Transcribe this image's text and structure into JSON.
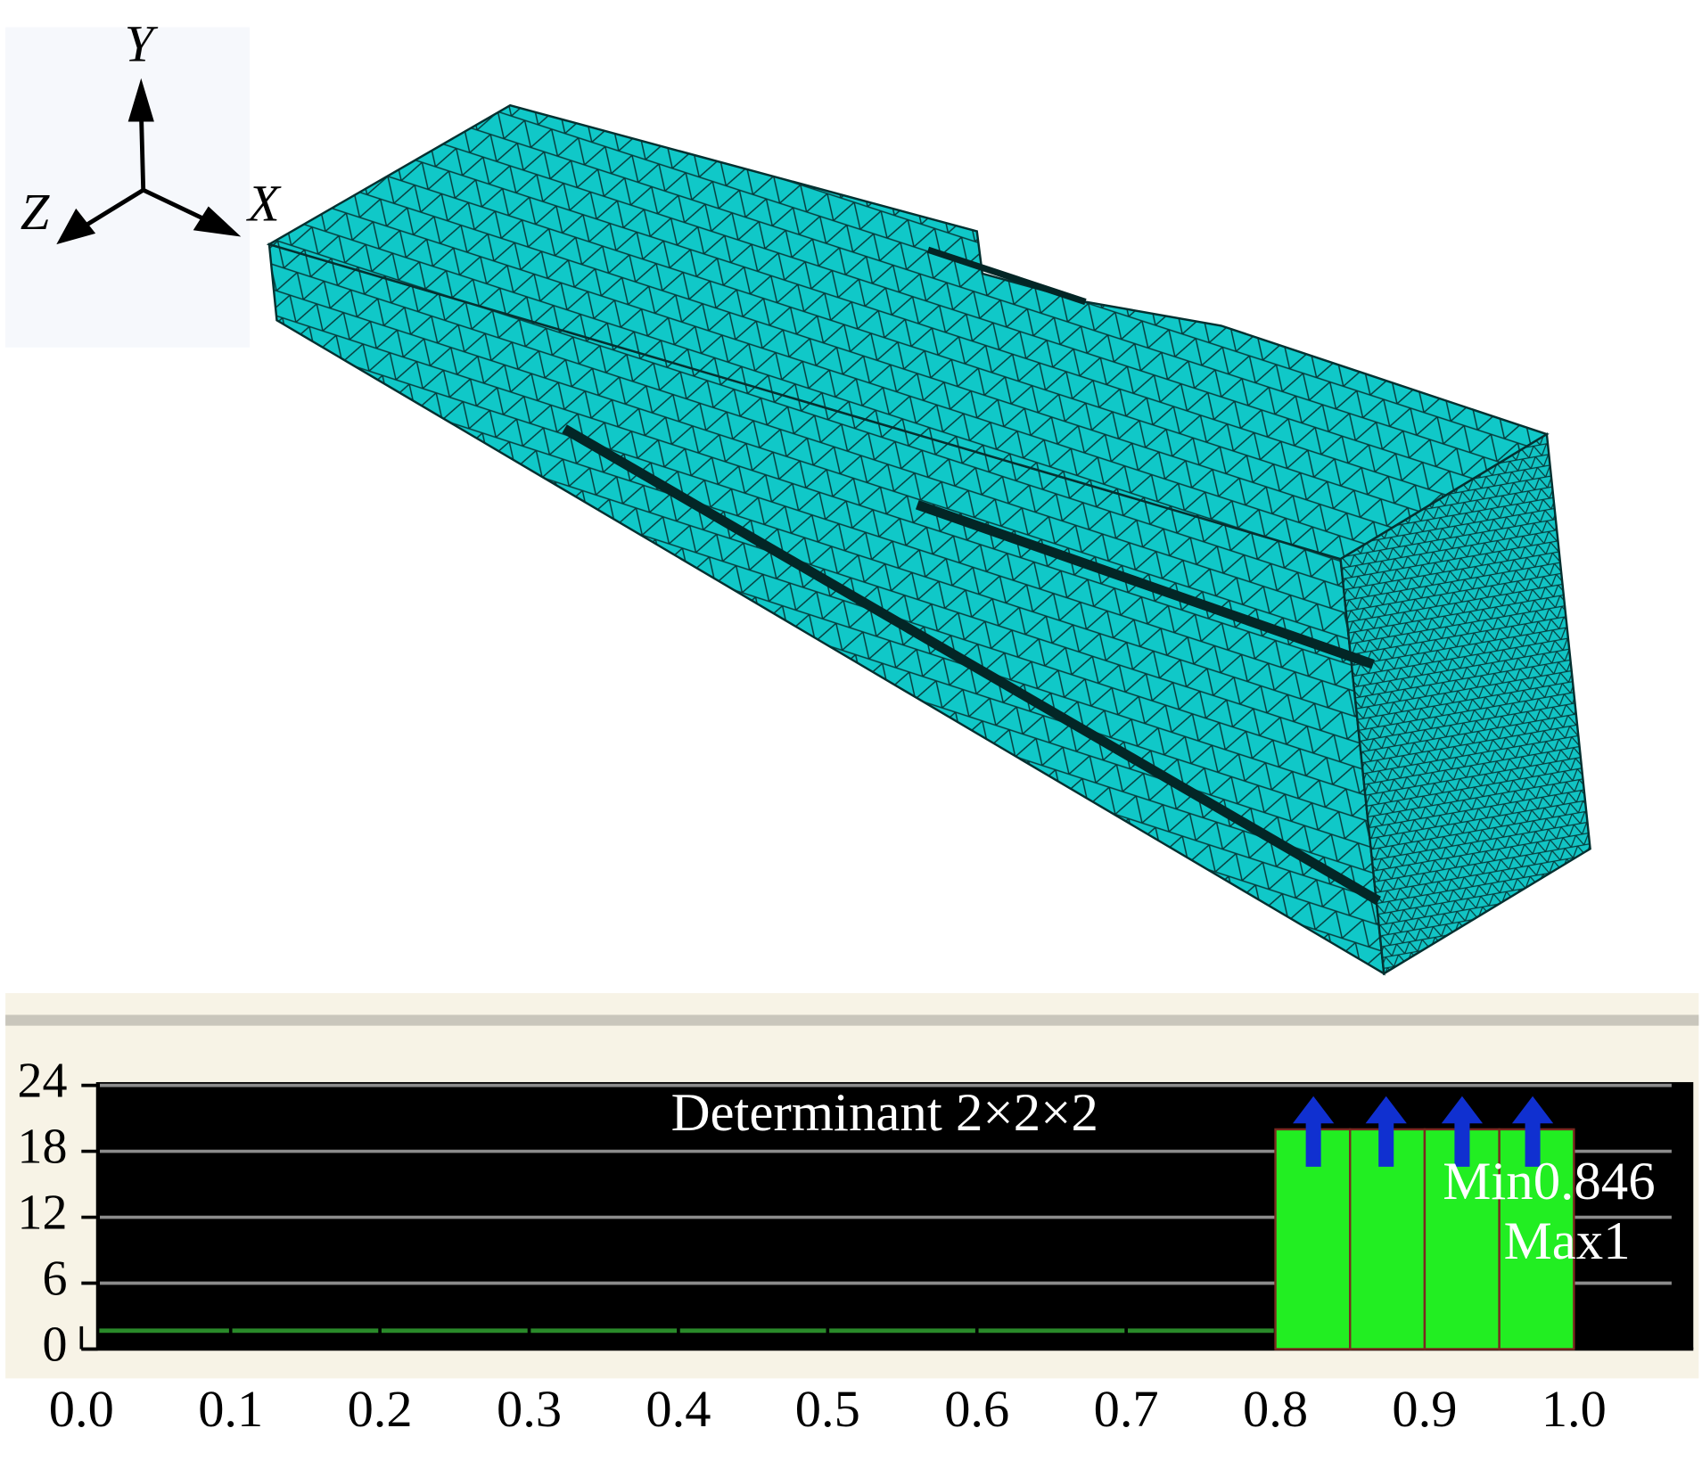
{
  "axis_triad": {
    "y": "Y",
    "z": "Z",
    "x": "X"
  },
  "chart_data": {
    "type": "histogram",
    "title": "Determinant 2×2×2",
    "annotations": [
      "Min0.846",
      "Max1"
    ],
    "bins": [
      0.8,
      0.85,
      0.9,
      0.95,
      1.0
    ],
    "values": [
      20,
      20,
      20,
      20
    ],
    "color": "#22ee22",
    "xlim": [
      0,
      1.08
    ],
    "xticks": [
      {
        "value": 0,
        "label": "0.0"
      },
      0.1,
      0.2,
      0.3,
      0.4,
      0.5,
      0.6,
      0.7,
      0.8,
      0.9,
      {
        "value": 1,
        "label": "1.0"
      }
    ],
    "ylim": [
      0,
      24
    ],
    "yticks": [
      0,
      6,
      12,
      18,
      24
    ],
    "grid": true
  }
}
